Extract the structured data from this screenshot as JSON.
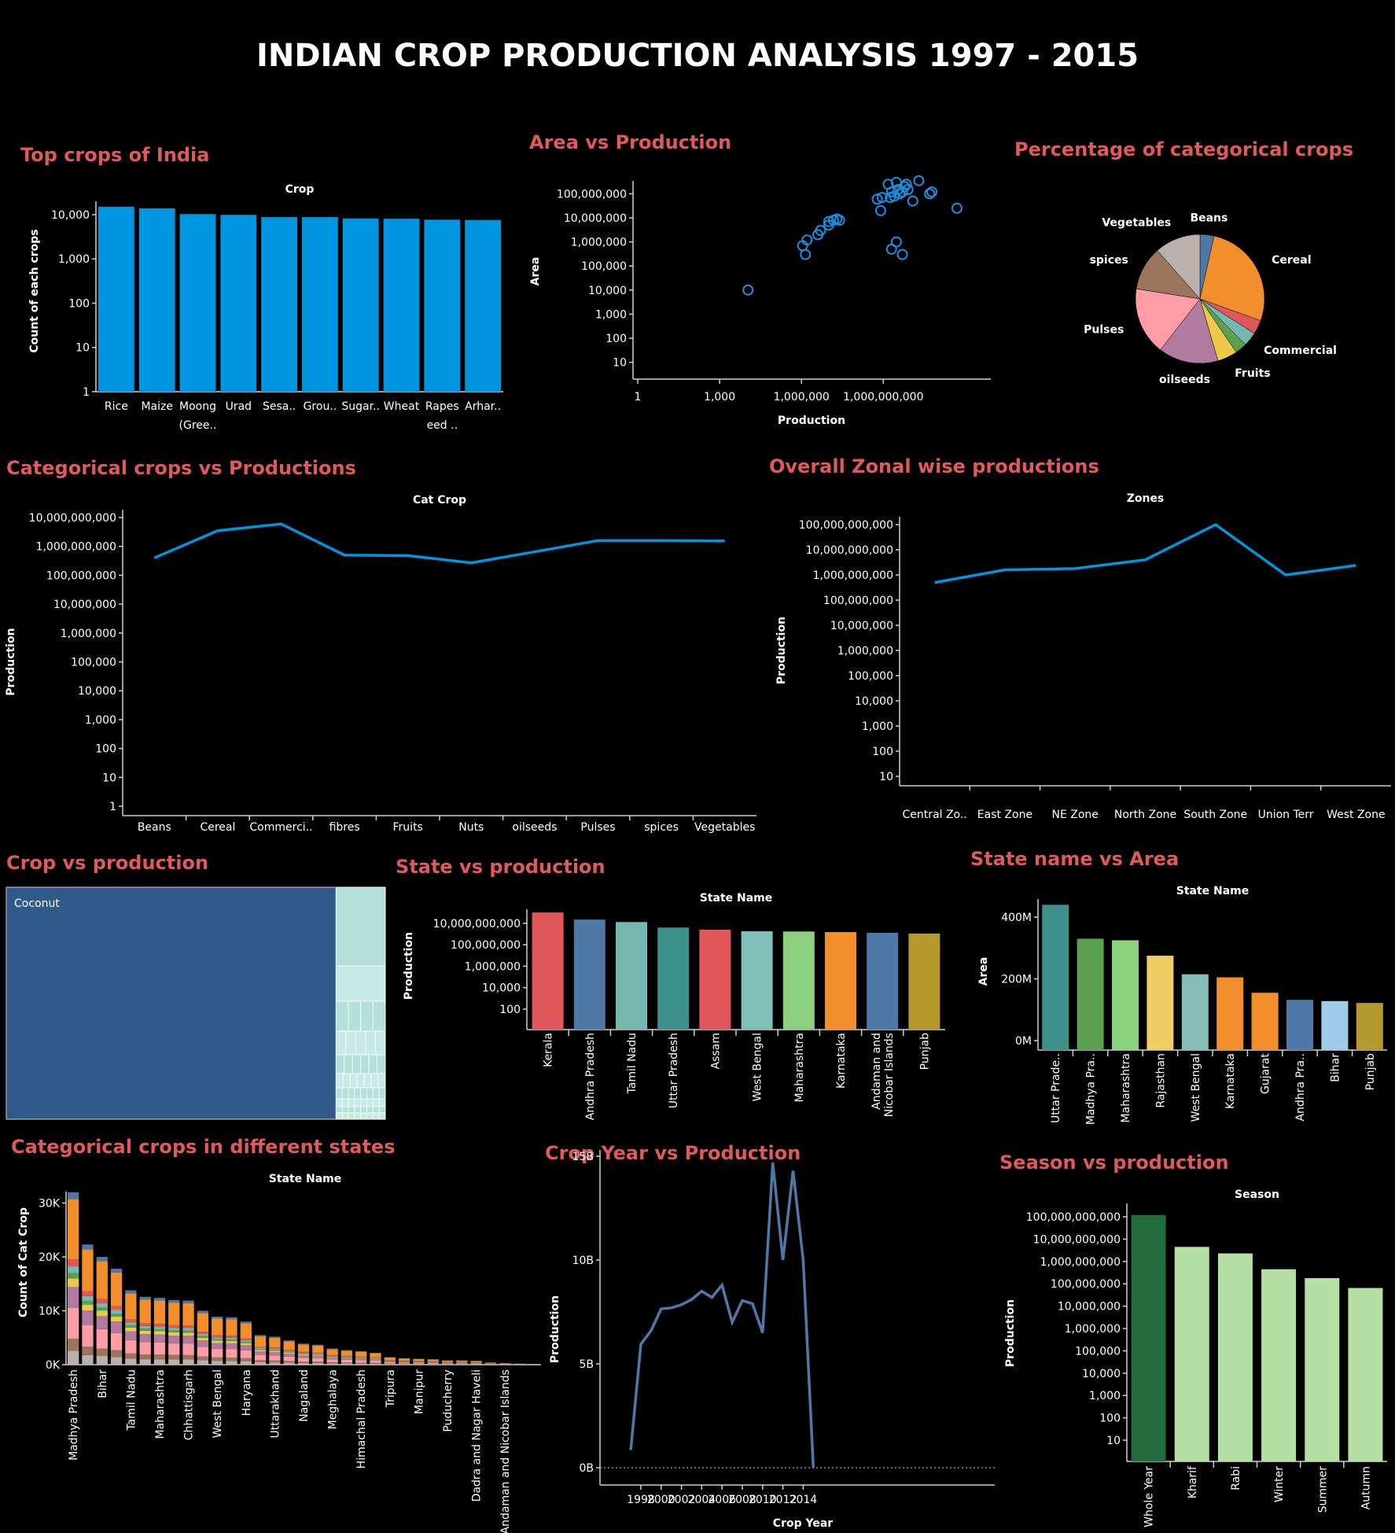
{
  "dashboard": {
    "title": "INDIAN CROP PRODUCTION ANALYSIS 1997 - 2015"
  },
  "colors": {
    "accent_blue": "#0095e0",
    "title_red": "#e05a5a",
    "line_blue": "#4e79a7"
  },
  "chart_data": [
    {
      "id": "top-crops",
      "panel_title": "Top crops of India",
      "type": "bar",
      "title": "Crop",
      "ylabel": "Count of each crops",
      "yscale": "log",
      "ylim": [
        1,
        20000
      ],
      "yticks": [
        "1",
        "10",
        "100",
        "1,000",
        "10,000"
      ],
      "categories": [
        "Rice",
        "Maize",
        "Moong (Gree..",
        "Urad",
        "Sesa..",
        "Grou..",
        "Sugar..",
        "Wheat",
        "Rapes eed ..",
        "Arhar.."
      ],
      "values": [
        15100,
        13900,
        10300,
        9900,
        8800,
        8800,
        8200,
        8100,
        7700,
        7600
      ],
      "color": "#0095e0"
    },
    {
      "id": "area-vs-production",
      "panel_title": "Area vs Production",
      "type": "scatter",
      "xlabel": "Production",
      "ylabel": "Area",
      "xscale": "log",
      "yscale": "log",
      "xticks": [
        "1",
        "1,000",
        "1,000,000",
        "1,000,000,000"
      ],
      "yticks": [
        "10",
        "100",
        "1,000",
        "10,000",
        "100,000",
        "1,000,000",
        "10,000,000",
        "100,000,000"
      ],
      "points": [
        [
          11000,
          10000
        ],
        [
          1100000,
          700000
        ],
        [
          1400000,
          300000
        ],
        [
          1600000,
          1200000
        ],
        [
          4000000,
          2000000
        ],
        [
          5000000,
          3000000
        ],
        [
          10000000,
          5000000
        ],
        [
          10000000,
          7000000
        ],
        [
          15000000,
          8000000
        ],
        [
          20000000,
          9000000
        ],
        [
          25000000,
          8000000
        ],
        [
          600000000,
          60000000
        ],
        [
          800000000,
          20000000
        ],
        [
          900000000,
          70000000
        ],
        [
          1500000000,
          250000000
        ],
        [
          1800000000,
          70000000
        ],
        [
          2000000000,
          120000000
        ],
        [
          2500000000,
          80000000
        ],
        [
          3000000000,
          300000000
        ],
        [
          3500000000,
          150000000
        ],
        [
          4000000000,
          100000000
        ],
        [
          5000000000,
          120000000
        ],
        [
          6000000000,
          200000000
        ],
        [
          7000000000,
          250000000
        ],
        [
          8000000000,
          150000000
        ],
        [
          12000000000,
          50000000
        ],
        [
          20000000000,
          350000000
        ],
        [
          2000000000,
          500000
        ],
        [
          3000000000,
          1000000
        ],
        [
          5000000000,
          300000
        ],
        [
          50000000000,
          100000000
        ],
        [
          60000000000,
          120000000
        ],
        [
          500000000000,
          25000000
        ]
      ],
      "color": "#1a8fe0"
    },
    {
      "id": "categorical-pie",
      "panel_title": "Percentage of categorical crops",
      "type": "pie",
      "slices": [
        {
          "label": "Beans",
          "value": 3.5,
          "color": "#4e79a7"
        },
        {
          "label": "Cereal",
          "value": 27,
          "color": "#f28e2b"
        },
        {
          "label": "",
          "value": 3.5,
          "color": "#e15759"
        },
        {
          "label": "Commercial",
          "value": 3.5,
          "color": "#76b7b2"
        },
        {
          "label": "",
          "value": 3,
          "color": "#59a14f"
        },
        {
          "label": "Fruits",
          "value": 5,
          "color": "#edc948"
        },
        {
          "label": "oilseeds",
          "value": 15,
          "color": "#b07aa1"
        },
        {
          "label": "Pulses",
          "value": 17,
          "color": "#ff9da7"
        },
        {
          "label": "spices",
          "value": 11,
          "color": "#9c755f"
        },
        {
          "label": "Vegetables",
          "value": 11.5,
          "color": "#bab0ac"
        }
      ]
    },
    {
      "id": "cat-crops-production",
      "panel_title": "Categorical crops vs Productions",
      "type": "line",
      "title": "Cat Crop",
      "ylabel": "Production",
      "yscale": "log",
      "yticks": [
        "1",
        "10",
        "100",
        "1,000",
        "10,000",
        "100,000",
        "1,000,000",
        "10,000,000",
        "100,000,000",
        "1,000,000,000",
        "10,000,000,000"
      ],
      "categories": [
        "Beans",
        "Cereal",
        "Commerci..",
        "fibres",
        "Fruits",
        "Nuts",
        "oilseeds",
        "Pulses",
        "spices",
        "Vegetables"
      ],
      "values": [
        400000000,
        3500000000,
        6000000000,
        500000000,
        480000000,
        270000000,
        650000000,
        1600000000,
        1600000000,
        1550000000
      ],
      "color": "#0095e0"
    },
    {
      "id": "zonal-production",
      "panel_title": "Overall Zonal wise productions",
      "type": "line",
      "title": "Zones",
      "ylabel": "Production",
      "yscale": "log",
      "yticks": [
        "10",
        "100",
        "1,000",
        "10,000",
        "100,000",
        "1,000,000",
        "10,000,000",
        "100,000,000",
        "1,000,000,000",
        "10,000,000,000",
        "100,000,000,000"
      ],
      "categories": [
        "Central Zo..",
        "East Zone",
        "NE Zone",
        "North Zone",
        "South Zone",
        "Union Terr",
        "West Zone"
      ],
      "values": [
        500000000,
        1600000000,
        1800000000,
        4000000000,
        100000000000,
        1000000000,
        2400000000
      ],
      "color": "#0095e0"
    },
    {
      "id": "crop-vs-production",
      "panel_title": "Crop vs production",
      "type": "treemap",
      "label": "Coconut",
      "main_share": 0.87,
      "main_color": "#2f5a8a",
      "rest_color": "#b3e0d8"
    },
    {
      "id": "state-production",
      "panel_title": "State vs production",
      "type": "bar",
      "title": "State Name",
      "ylabel": "Production",
      "yscale": "log",
      "yticks": [
        "100",
        "10,000",
        "1,000,000",
        "100,000,000",
        "10,000,000,000"
      ],
      "categories": [
        "Kerala",
        "Andhra Pradesh",
        "Tamil Nadu",
        "Uttar Pradesh",
        "Assam",
        "West Bengal",
        "Maharashtra",
        "Karnataka",
        "Andaman and Nicobar Islands",
        "Punjab"
      ],
      "values": [
        100000000000,
        22000000000,
        13000000000,
        4000000000,
        2500000000,
        1800000000,
        1700000000,
        1500000000,
        1300000000,
        1100000000
      ],
      "colors": [
        "#e15759",
        "#4e79a7",
        "#76b7b2",
        "#3e918b",
        "#e15759",
        "#7fbfb8",
        "#8cd17d",
        "#f28e2b",
        "#4e79a7",
        "#b6992d"
      ]
    },
    {
      "id": "state-area",
      "panel_title": "State name vs Area",
      "type": "bar",
      "title": "State Name",
      "ylabel": "Area",
      "ylim": [
        0,
        450000000
      ],
      "yticks": [
        "0M",
        "200M",
        "400M"
      ],
      "categories": [
        "Uttar Prade..",
        "Madhya Pra..",
        "Maharashtra",
        "Rajasthan",
        "West Bengal",
        "Karnataka",
        "Gujarat",
        "Andhra Pra..",
        "Bihar",
        "Punjab"
      ],
      "values": [
        440000000,
        330000000,
        325000000,
        275000000,
        215000000,
        205000000,
        155000000,
        132000000,
        128000000,
        122000000
      ],
      "colors": [
        "#3e918b",
        "#59a14f",
        "#8cd17d",
        "#f1ce63",
        "#86bcb6",
        "#f28e2b",
        "#f28e2b",
        "#4e79a7",
        "#a0cbe8",
        "#b6992d"
      ]
    },
    {
      "id": "cat-crops-states",
      "panel_title": "Categorical crops in different states",
      "type": "bar",
      "stacked": true,
      "title": "State Name",
      "ylabel": "Count of Cat Crop",
      "ylim": [
        0,
        32000
      ],
      "yticks": [
        "0K",
        "10K",
        "20K",
        "30K"
      ],
      "categories": [
        "Madhya Pradesh",
        "",
        "Bihar",
        "",
        "Tamil Nadu",
        "",
        "Maharashtra",
        "",
        "Chhattisgarh",
        "",
        "West Bengal",
        "",
        "Haryana",
        "",
        "Uttarakhand",
        "",
        "Nagaland",
        "",
        "Meghalaya",
        "",
        "Himachal Pradesh",
        "",
        "Tripura",
        "",
        "Manipur",
        "",
        "Puducherry",
        "",
        "Dadra and Nagar Haveli",
        "",
        "Andaman and Nicobar Islands"
      ],
      "totals": [
        32000,
        22300,
        20000,
        17800,
        13800,
        12600,
        12400,
        12000,
        11900,
        10000,
        8900,
        8800,
        8000,
        5500,
        5200,
        4500,
        3900,
        3700,
        3000,
        2700,
        2500,
        2200,
        1400,
        1200,
        1100,
        1000,
        800,
        800,
        700,
        400,
        300,
        200,
        150
      ],
      "segment_colors": [
        "#bab0ac",
        "#9c755f",
        "#ff9da7",
        "#b07aa1",
        "#edc948",
        "#59a14f",
        "#76b7b2",
        "#e15759",
        "#f28e2b",
        "#4e79a7"
      ],
      "segment_shares": [
        0.08,
        0.07,
        0.18,
        0.12,
        0.05,
        0.03,
        0.04,
        0.04,
        0.35,
        0.04
      ]
    },
    {
      "id": "year-production",
      "panel_title": "Crop Year vs Production",
      "type": "line",
      "xlabel": "Crop Year",
      "ylabel": "Production",
      "ylim": [
        0,
        15000000000
      ],
      "yticks": [
        "0B",
        "5B",
        "10B",
        "15B"
      ],
      "xticks": [
        "1998",
        "2000",
        "2002",
        "2004",
        "2006",
        "2008",
        "2010",
        "2012",
        "2014"
      ],
      "x": [
        1997,
        1998,
        1999,
        2000,
        2001,
        2002,
        2003,
        2004,
        2005,
        2006,
        2007,
        2008,
        2009,
        2010,
        2011,
        2012,
        2013,
        2014,
        2015
      ],
      "values": [
        850000000,
        5950000000,
        6600000000,
        7650000000,
        7700000000,
        7850000000,
        8100000000,
        8500000000,
        8200000000,
        8800000000,
        7000000000,
        8050000000,
        7900000000,
        6500000000,
        14700000000,
        10000000000,
        14300000000,
        10000000000,
        0
      ],
      "color": "#4e79a7"
    },
    {
      "id": "season-production",
      "panel_title": "Season vs production",
      "type": "bar",
      "title": "Season",
      "ylabel": "Production",
      "yscale": "log",
      "yticks": [
        "10",
        "100",
        "1,000",
        "10,000",
        "100,000",
        "1,000,000",
        "10,000,000",
        "100,000,000",
        "1,000,000,000",
        "10,000,000,000",
        "100,000,000,000"
      ],
      "categories": [
        "Whole Year",
        "Kharif",
        "Rabi",
        "Winter",
        "Summer",
        "Autumn"
      ],
      "values": [
        120000000000,
        4500000000,
        2300000000,
        450000000,
        180000000,
        65000000
      ],
      "colors": [
        "#236a3c",
        "#b5dfa3",
        "#b5dfa3",
        "#b5dfa3",
        "#b5dfa3",
        "#b5dfa3"
      ]
    }
  ]
}
